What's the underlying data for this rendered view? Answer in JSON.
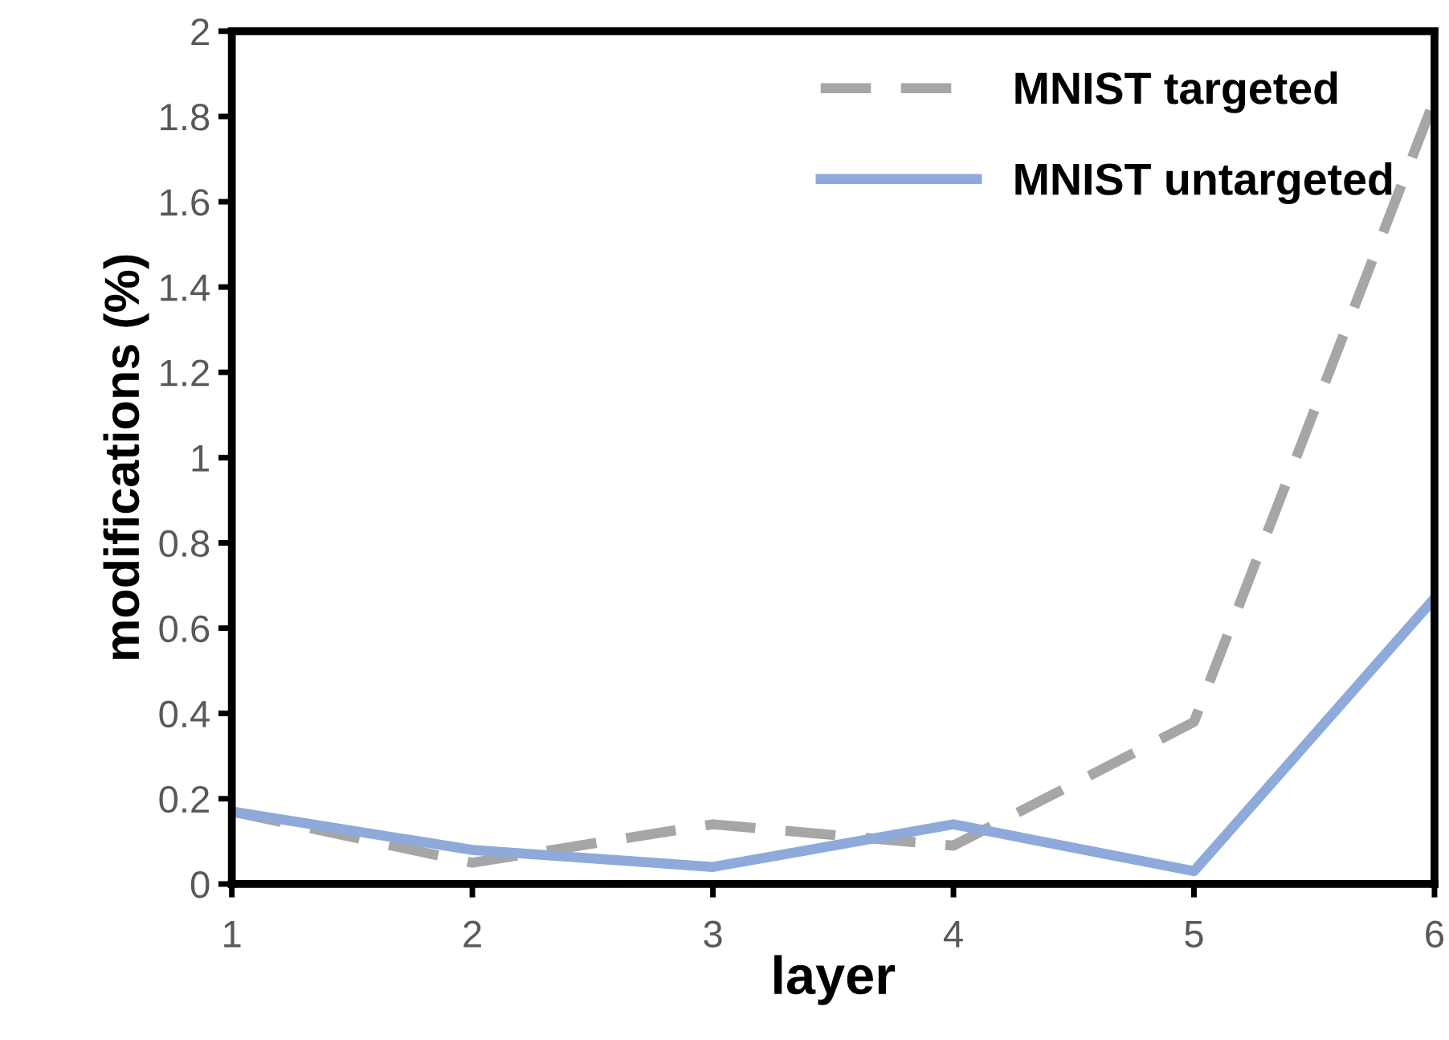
{
  "chart_data": {
    "type": "line",
    "xlabel": "layer",
    "ylabel": "modifications (%)",
    "x": [
      1,
      2,
      3,
      4,
      5,
      6
    ],
    "series": [
      {
        "name": "MNIST targeted",
        "color": "#a6a6a6",
        "line_style": "dashed",
        "values": [
          0.17,
          0.05,
          0.14,
          0.09,
          0.38,
          1.84
        ]
      },
      {
        "name": "MNIST untargeted",
        "color": "#8eaadb",
        "line_style": "solid",
        "values": [
          0.17,
          0.08,
          0.04,
          0.14,
          0.03,
          0.67
        ]
      }
    ],
    "xlim": [
      1,
      6
    ],
    "xticks": [
      1,
      2,
      3,
      4,
      5,
      6
    ],
    "ylim": [
      0,
      2
    ],
    "yticks": [
      0,
      0.2,
      0.4,
      0.6,
      0.8,
      1,
      1.2,
      1.4,
      1.6,
      1.8,
      2
    ],
    "grid": false,
    "legend": "top right",
    "marker": "none"
  }
}
